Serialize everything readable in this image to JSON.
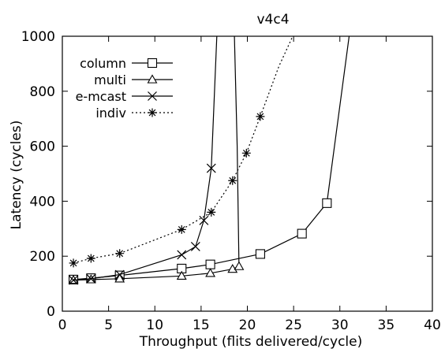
{
  "chart_data": {
    "type": "line",
    "title": "v4c4",
    "xlabel": "Throughput (flits delivered/cycle)",
    "ylabel": "Latency (cycles)",
    "xlim": [
      0,
      40
    ],
    "ylim": [
      0,
      1000
    ],
    "xticks": [
      0,
      5,
      10,
      15,
      20,
      25,
      30,
      35,
      40
    ],
    "yticks": [
      0,
      200,
      400,
      600,
      800,
      1000
    ],
    "grid": false,
    "legend_position": "top-left",
    "series": [
      {
        "name": "column",
        "marker": "square",
        "line": "solid",
        "x": [
          1.2,
          3.1,
          6.2,
          12.9,
          16.0,
          21.4,
          25.9,
          28.6,
          31.0
        ],
        "y": [
          115,
          120,
          130,
          155,
          170,
          208,
          282,
          393,
          1000
        ],
        "marked": [
          true,
          true,
          true,
          true,
          true,
          true,
          true,
          true,
          false
        ]
      },
      {
        "name": "multi",
        "marker": "triangle",
        "line": "solid",
        "x": [
          1.2,
          3.1,
          6.2,
          12.9,
          16.0,
          18.4,
          19.1,
          18.9,
          18.6
        ],
        "y": [
          113,
          115,
          118,
          128,
          138,
          153,
          163,
          600,
          1000
        ],
        "marked": [
          true,
          true,
          true,
          true,
          true,
          true,
          true,
          false,
          false
        ]
      },
      {
        "name": "e-mcast",
        "marker": "x",
        "line": "solid",
        "x": [
          1.2,
          3.1,
          6.2,
          12.9,
          14.4,
          15.3,
          16.1,
          16.7
        ],
        "y": [
          113,
          118,
          133,
          205,
          235,
          330,
          520,
          1000
        ],
        "marked": [
          true,
          true,
          true,
          true,
          true,
          true,
          true,
          false
        ]
      },
      {
        "name": "indiv",
        "marker": "star",
        "line": "dotted",
        "x": [
          1.2,
          3.1,
          6.2,
          12.9,
          16.1,
          18.4,
          19.9,
          21.4,
          23.4,
          24.9
        ],
        "y": [
          175,
          192,
          210,
          297,
          360,
          475,
          575,
          708,
          890,
          1000
        ],
        "marked": [
          true,
          true,
          true,
          true,
          true,
          true,
          true,
          true,
          false,
          false
        ]
      }
    ]
  }
}
